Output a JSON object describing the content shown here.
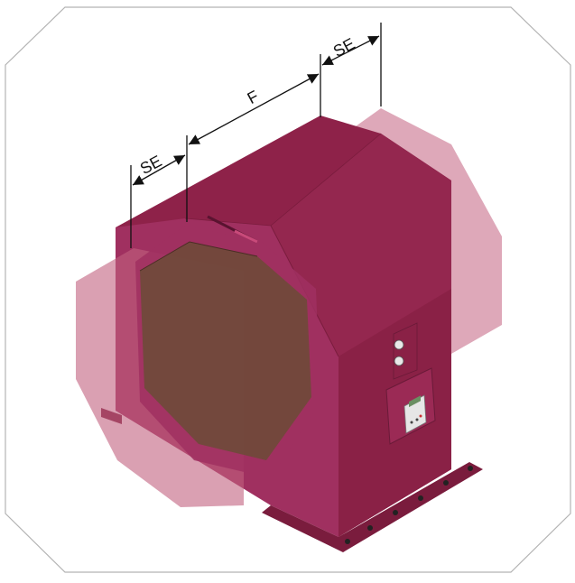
{
  "dimensions": {
    "se_left_label": "SE",
    "f_label": "F",
    "se_right_label": "SE"
  },
  "colors": {
    "body": "#9b2a55",
    "frame_border": "#b3b3b3",
    "window_glass": "#6f4a3a",
    "end_section_translucent": "#c2607f"
  },
  "icons": {
    "control_panel": "control-panel-icon",
    "pilot_lights": "pilot-light-icon"
  }
}
